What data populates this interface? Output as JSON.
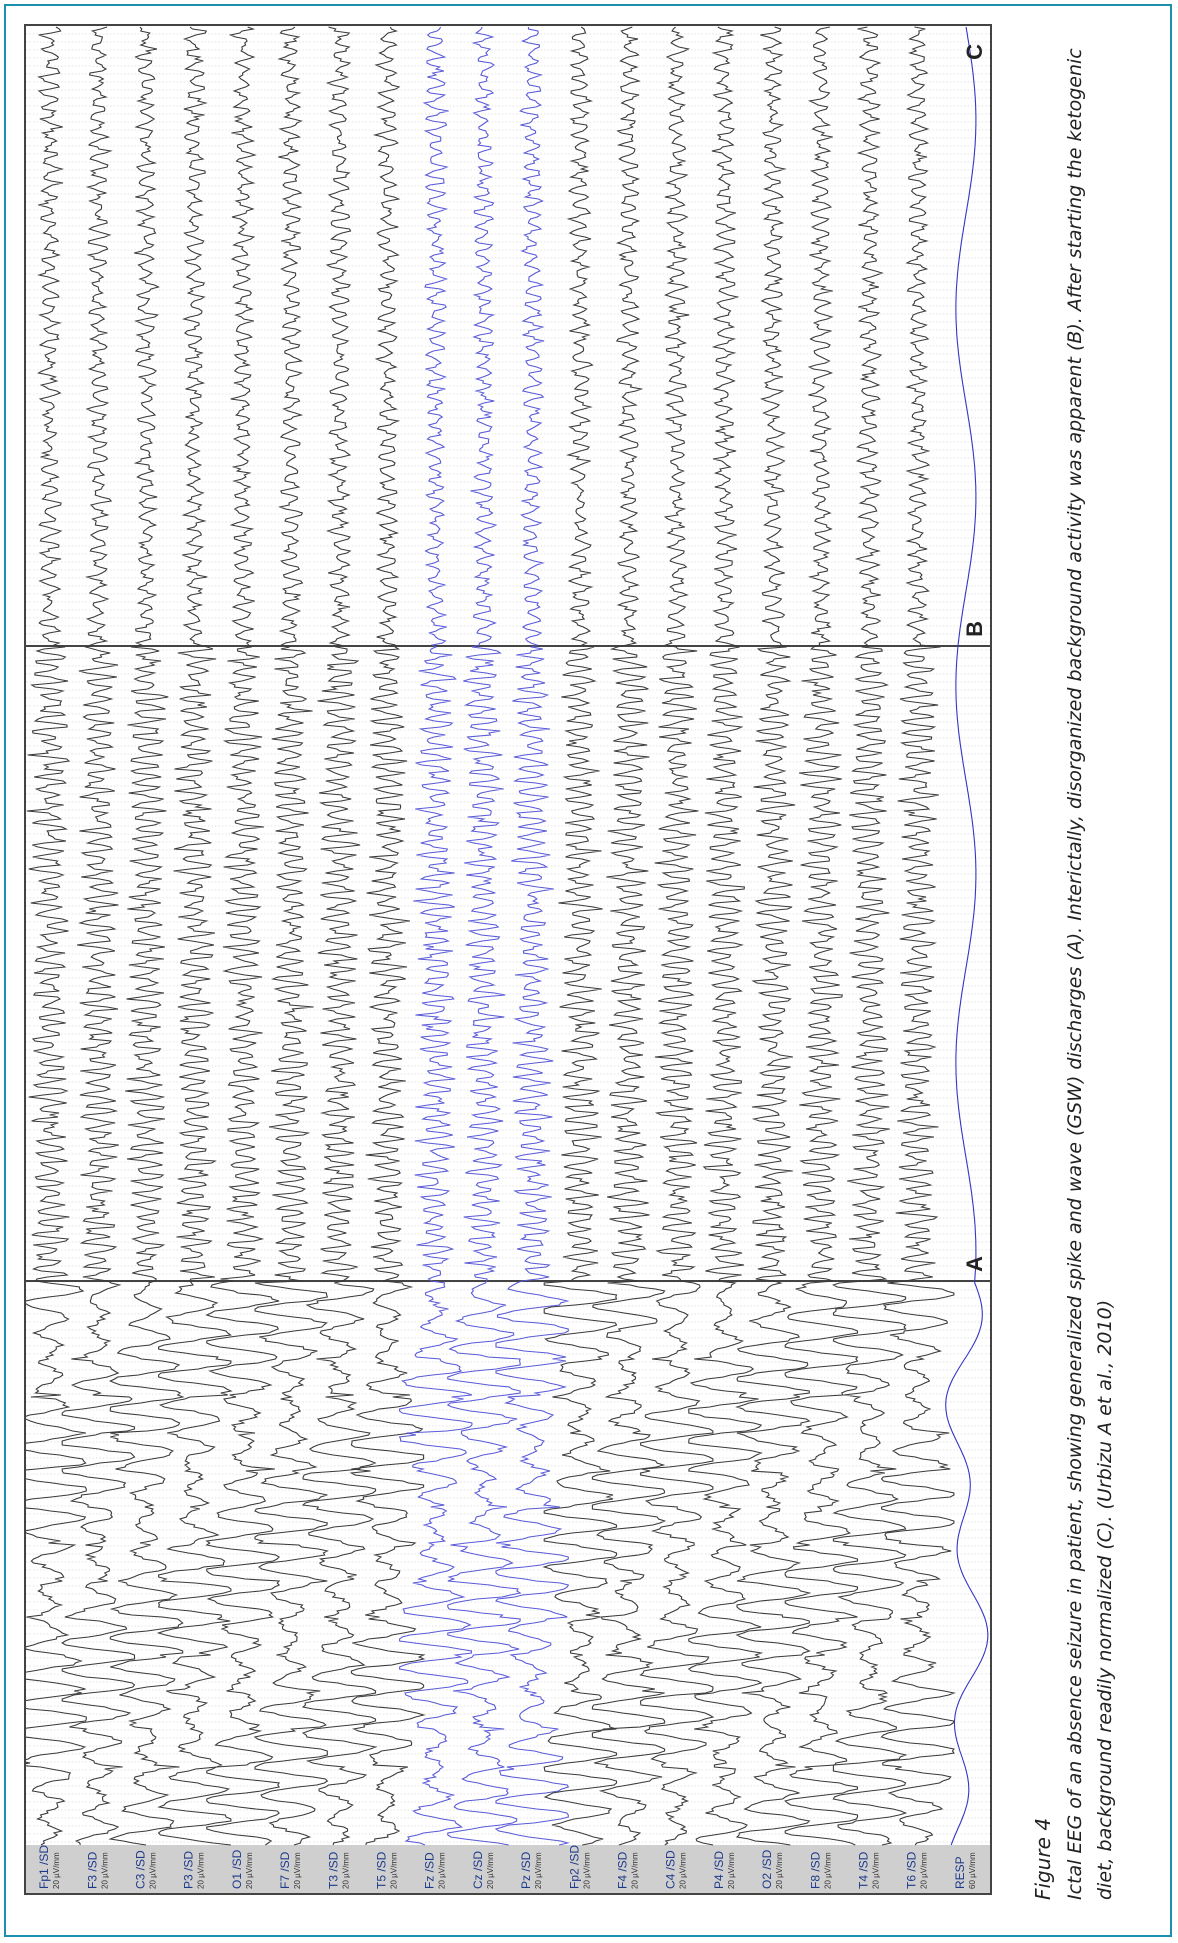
{
  "figure": {
    "label": "Figure 4",
    "caption": "Ictal EEG of an absence seizure in patient, showing generalized spike and wave (GSW) discharges (A). Interictally, disorganized background activity was apparent (B). After starting the ketogenic diet, background readily normalized (C). (Urbizu A et al., 2010)"
  },
  "eeg": {
    "channels": [
      {
        "name": "Fp1 /SD",
        "scale": "20 µV/mm",
        "color": "#3a3a3a"
      },
      {
        "name": "F3 /SD",
        "scale": "20 µV/mm",
        "color": "#3a3a3a"
      },
      {
        "name": "C3 /SD",
        "scale": "20 µV/mm",
        "color": "#3a3a3a"
      },
      {
        "name": "P3 /SD",
        "scale": "20 µV/mm",
        "color": "#3a3a3a"
      },
      {
        "name": "O1 /SD",
        "scale": "20 µV/mm",
        "color": "#3a3a3a"
      },
      {
        "name": "F7 /SD",
        "scale": "20 µV/mm",
        "color": "#3a3a3a"
      },
      {
        "name": "T3 /SD",
        "scale": "20 µV/mm",
        "color": "#3a3a3a"
      },
      {
        "name": "T5 /SD",
        "scale": "20 µV/mm",
        "color": "#3a3a3a"
      },
      {
        "name": "Fz /SD",
        "scale": "20 µV/mm",
        "color": "#5a5ad8"
      },
      {
        "name": "Cz /SD",
        "scale": "20 µV/mm",
        "color": "#5a5ad8"
      },
      {
        "name": "Pz /SD",
        "scale": "20 µV/mm",
        "color": "#5a5ad8"
      },
      {
        "name": "Fp2 /SD",
        "scale": "20 µV/mm",
        "color": "#3a3a3a"
      },
      {
        "name": "F4 /SD",
        "scale": "20 µV/mm",
        "color": "#3a3a3a"
      },
      {
        "name": "C4 /SD",
        "scale": "20 µV/mm",
        "color": "#3a3a3a"
      },
      {
        "name": "P4 /SD",
        "scale": "20 µV/mm",
        "color": "#3a3a3a"
      },
      {
        "name": "O2 /SD",
        "scale": "20 µV/mm",
        "color": "#3a3a3a"
      },
      {
        "name": "F8 /SD",
        "scale": "20 µV/mm",
        "color": "#3a3a3a"
      },
      {
        "name": "T4 /SD",
        "scale": "20 µV/mm",
        "color": "#3a3a3a"
      },
      {
        "name": "T6 /SD",
        "scale": "20 µV/mm",
        "color": "#3a3a3a"
      },
      {
        "name": "RESP",
        "scale": "60 µV/mm",
        "color": "#3535c8"
      }
    ],
    "segments": [
      {
        "label": "A",
        "state": "ictal GSW"
      },
      {
        "label": "B",
        "state": "interictal disorganized"
      },
      {
        "label": "C",
        "state": "normalized"
      }
    ],
    "colors": {
      "grid": "#c8c8c8",
      "label_band": "#cfcfcf",
      "divider": "#444444"
    }
  }
}
